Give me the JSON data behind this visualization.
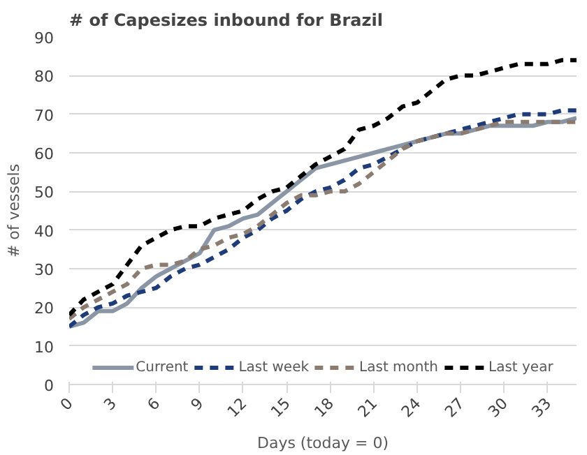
{
  "chart_data": {
    "type": "line",
    "title": "# of Capesizes inbound for Brazil",
    "xlabel": "Days (today = 0)",
    "ylabel": "# of vessels",
    "x": [
      0,
      1,
      2,
      3,
      4,
      5,
      6,
      7,
      8,
      9,
      10,
      11,
      12,
      13,
      14,
      15,
      16,
      17,
      18,
      19,
      20,
      21,
      22,
      23,
      24,
      25,
      26,
      27,
      28,
      29,
      30,
      31,
      32,
      33,
      34,
      35
    ],
    "xlim": [
      0,
      35
    ],
    "xticks": [
      0,
      3,
      6,
      9,
      12,
      15,
      18,
      21,
      24,
      27,
      30,
      33
    ],
    "ylim": [
      0,
      90
    ],
    "yticks": [
      0,
      10,
      20,
      30,
      40,
      50,
      60,
      70,
      80,
      90
    ],
    "grid": "y",
    "legend": "bottom",
    "series": [
      {
        "name": "Current",
        "color": "#8a95a5",
        "line_style": "solid",
        "values": [
          15,
          16,
          19,
          19,
          21,
          25,
          28,
          30,
          32,
          34,
          40,
          41,
          43,
          44,
          47,
          50,
          53,
          56,
          57,
          58,
          59,
          60,
          61,
          62,
          63,
          64,
          65,
          65,
          66,
          67,
          67,
          67,
          67,
          68,
          68,
          69
        ]
      },
      {
        "name": "Last week",
        "color": "#1f3c7a",
        "line_style": "dashed",
        "values": [
          15,
          18,
          20,
          21,
          23,
          24,
          25,
          28,
          30,
          31,
          33,
          35,
          38,
          40,
          43,
          45,
          48,
          50,
          51,
          53,
          56,
          57,
          59,
          61,
          63,
          64,
          65,
          66,
          67,
          68,
          69,
          70,
          70,
          70,
          71,
          71
        ]
      },
      {
        "name": "Last month",
        "color": "#8c7b70",
        "line_style": "dashed",
        "values": [
          17,
          20,
          22,
          24,
          26,
          30,
          31,
          31,
          32,
          35,
          36,
          38,
          39,
          41,
          44,
          47,
          49,
          49,
          50,
          50,
          52,
          55,
          58,
          61,
          63,
          64,
          65,
          65,
          66,
          67,
          68,
          68,
          68,
          68,
          68,
          68
        ]
      },
      {
        "name": "Last year",
        "color": "#000000",
        "line_style": "dashed",
        "values": [
          18,
          22,
          24,
          26,
          31,
          36,
          38,
          40,
          41,
          41,
          43,
          44,
          45,
          48,
          50,
          51,
          54,
          57,
          59,
          61,
          66,
          67,
          69,
          72,
          73,
          76,
          79,
          80,
          80,
          81,
          82,
          83,
          83,
          83,
          84,
          84
        ]
      }
    ]
  }
}
